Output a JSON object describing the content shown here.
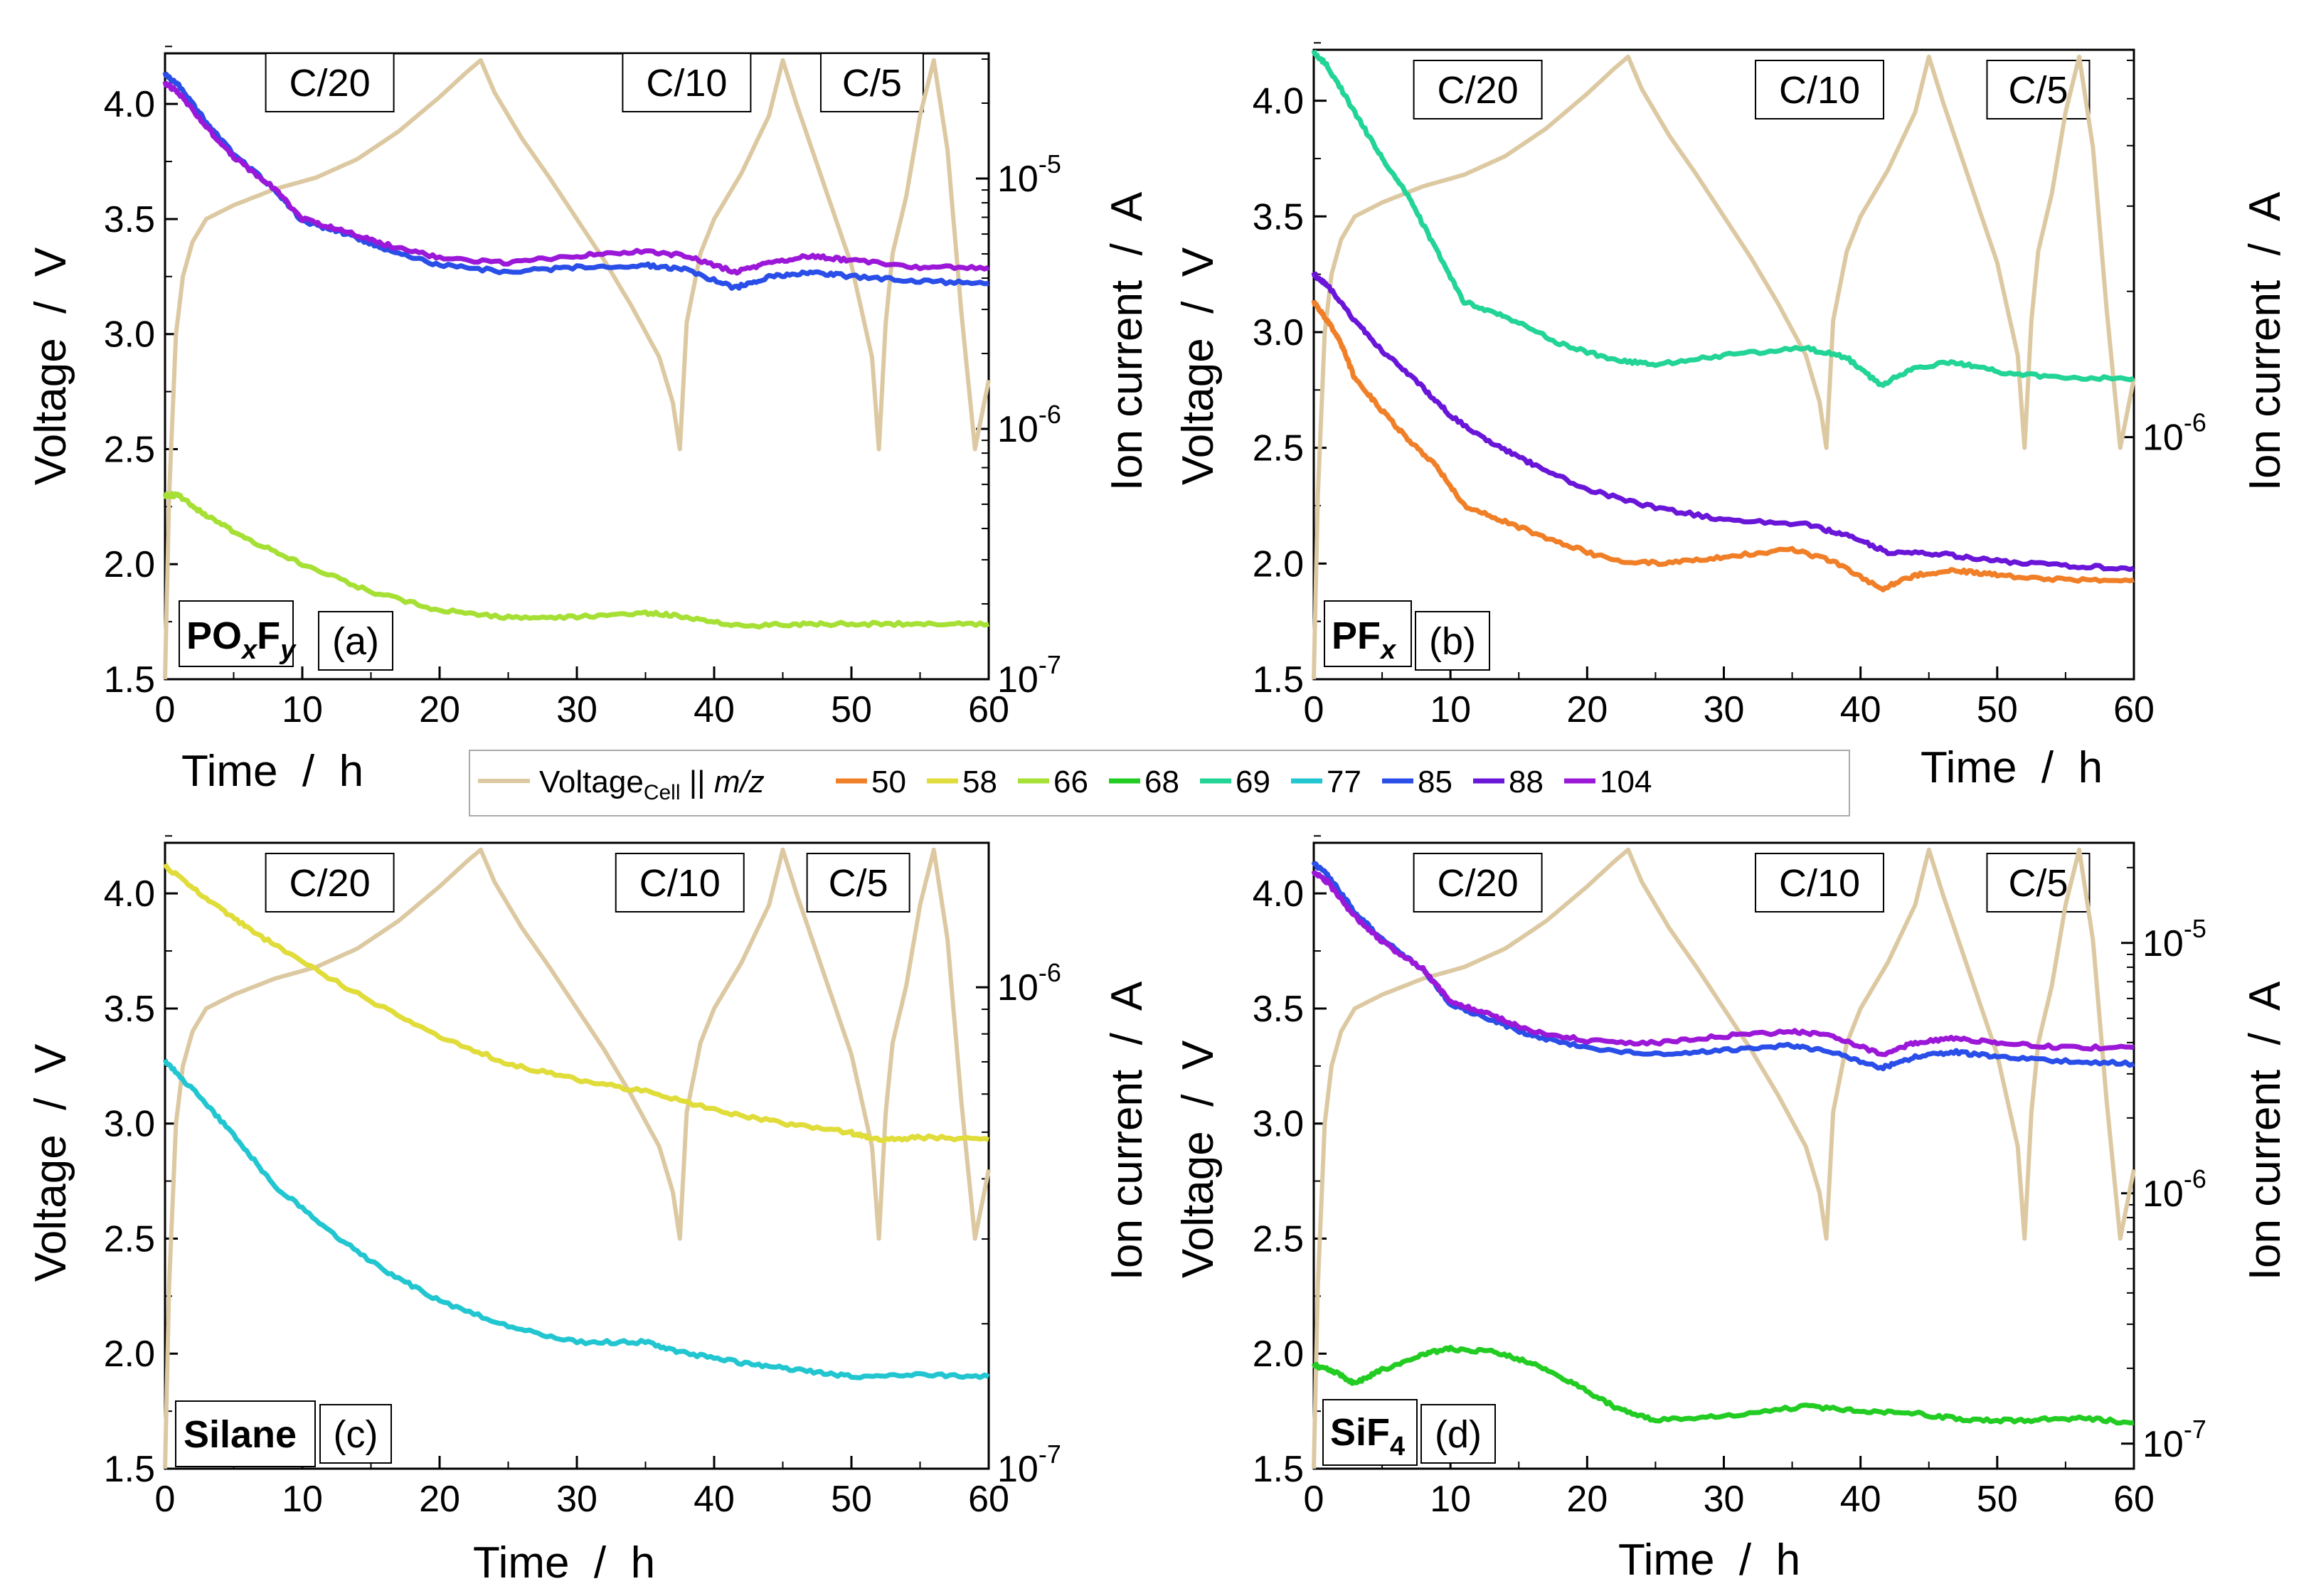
{
  "legend": {
    "voltage_label": "Voltage",
    "voltage_sub": "Cell",
    "separator": " || ",
    "mz_label": "m/z",
    "entries": [
      {
        "label": "50",
        "color": "#f07f28"
      },
      {
        "label": "58",
        "color": "#e0dc3a"
      },
      {
        "label": "66",
        "color": "#a6e035"
      },
      {
        "label": "68",
        "color": "#22cc22"
      },
      {
        "label": "69",
        "color": "#22d495"
      },
      {
        "label": "77",
        "color": "#22c6d0"
      },
      {
        "label": "85",
        "color": "#2a4ee8"
      },
      {
        "label": "88",
        "color": "#6a16d8"
      },
      {
        "label": "104",
        "color": "#9c18d8"
      }
    ]
  },
  "colors": {
    "voltage": "#dcc9a2"
  },
  "chart_data": [
    {
      "type": "line",
      "id": "a",
      "panel_label": "(a)",
      "species": {
        "base": "PO",
        "s1": "x",
        "mid": "F",
        "s2": "y"
      },
      "xlabel": "Time  /  h",
      "ylabel": "Voltage  /  V",
      "y2label": "Ion current  /  A",
      "xlim": [
        0,
        60
      ],
      "ylim": [
        1.5,
        4.22
      ],
      "xticks": [
        "0",
        "10",
        "20",
        "30",
        "40",
        "50",
        "60"
      ],
      "yticks": [
        "1.5",
        "2.0",
        "2.5",
        "3.0",
        "3.5",
        "4.0"
      ],
      "y2": {
        "log_min": -7,
        "log_max": -4.5,
        "ticks": [
          {
            "base": "10",
            "exp": "-7"
          },
          {
            "base": "10",
            "exp": "-6"
          },
          {
            "base": "10",
            "exp": "-5"
          }
        ]
      },
      "c_rates": [
        {
          "label": "C/20",
          "x": 12
        },
        {
          "label": "C/10",
          "x": 38
        },
        {
          "label": "C/5",
          "x": 51.5
        }
      ],
      "series": [
        {
          "name": "85",
          "color": "#2a4ee8",
          "x": [
            0,
            1,
            3,
            5,
            8,
            10,
            13,
            16,
            20,
            25,
            30,
            35,
            38,
            41.5,
            44,
            47,
            50,
            55,
            60
          ],
          "y": [
            4.13,
            4.08,
            3.92,
            3.78,
            3.63,
            3.49,
            3.44,
            3.37,
            3.3,
            3.27,
            3.29,
            3.3,
            3.28,
            3.2,
            3.25,
            3.27,
            3.25,
            3.23,
            3.22
          ]
        },
        {
          "name": "104",
          "color": "#9c18d8",
          "x": [
            0,
            1,
            3,
            5,
            8,
            10,
            13,
            16,
            20,
            25,
            30,
            35,
            38,
            41.5,
            44,
            47,
            50,
            55,
            60
          ],
          "y": [
            4.09,
            4.05,
            3.9,
            3.77,
            3.63,
            3.5,
            3.45,
            3.39,
            3.33,
            3.31,
            3.34,
            3.36,
            3.34,
            3.27,
            3.31,
            3.34,
            3.32,
            3.29,
            3.29
          ]
        },
        {
          "name": "66",
          "color": "#a6e035",
          "x": [
            0,
            1,
            3,
            6,
            10,
            15,
            20,
            25,
            30,
            35,
            38,
            42,
            46,
            50,
            55,
            60
          ],
          "y": [
            2.3,
            2.3,
            2.21,
            2.11,
            2.0,
            1.88,
            1.8,
            1.77,
            1.77,
            1.79,
            1.77,
            1.73,
            1.74,
            1.74,
            1.74,
            1.74
          ]
        }
      ]
    },
    {
      "type": "line",
      "id": "b",
      "panel_label": "(b)",
      "species": {
        "base": "PF",
        "s1": "x",
        "mid": "",
        "s2": ""
      },
      "xlabel": "Time  /  h",
      "ylabel": "Voltage  /  V",
      "y2label": "Ion current  /  A",
      "xlim": [
        0,
        60
      ],
      "ylim": [
        1.5,
        4.22
      ],
      "xticks": [
        "0",
        "10",
        "20",
        "30",
        "40",
        "50",
        "60"
      ],
      "yticks": [
        "1.5",
        "2.0",
        "2.5",
        "3.0",
        "3.5",
        "4.0"
      ],
      "y2": {
        "log_min": -6.5,
        "log_max": -5.2,
        "ticks": [
          {
            "base": "10",
            "exp": "-6"
          }
        ]
      },
      "c_rates": [
        {
          "label": "C/20",
          "x": 12
        },
        {
          "label": "C/10",
          "x": 37
        },
        {
          "label": "C/5",
          "x": 53
        }
      ],
      "series": [
        {
          "name": "69",
          "color": "#22d495",
          "x": [
            0,
            1,
            3,
            5,
            7,
            9,
            11,
            14,
            18,
            22,
            25,
            30,
            36,
            39,
            41.5,
            44,
            47,
            50,
            55,
            60
          ],
          "y": [
            4.21,
            4.15,
            3.95,
            3.75,
            3.58,
            3.35,
            3.13,
            3.07,
            2.95,
            2.88,
            2.86,
            2.9,
            2.93,
            2.89,
            2.77,
            2.85,
            2.87,
            2.83,
            2.8,
            2.8
          ]
        },
        {
          "name": "88",
          "color": "#6a16d8",
          "x": [
            0,
            1,
            3,
            5,
            8,
            10,
            13,
            16,
            20,
            25,
            30,
            36,
            39,
            42,
            46,
            50,
            55,
            60
          ],
          "y": [
            3.25,
            3.2,
            3.05,
            2.92,
            2.76,
            2.64,
            2.52,
            2.43,
            2.32,
            2.24,
            2.19,
            2.17,
            2.12,
            2.05,
            2.04,
            2.01,
            1.99,
            1.98
          ]
        },
        {
          "name": "50",
          "color": "#f07f28",
          "x": [
            0,
            1,
            2,
            3,
            5,
            7,
            9,
            11,
            14,
            18,
            22,
            26,
            30,
            35,
            38,
            41.5,
            44,
            47,
            50,
            55,
            60
          ],
          "y": [
            3.13,
            3.05,
            2.95,
            2.8,
            2.66,
            2.53,
            2.42,
            2.25,
            2.18,
            2.09,
            2.01,
            2.0,
            2.03,
            2.06,
            2.01,
            1.89,
            1.95,
            1.97,
            1.95,
            1.93,
            1.93
          ]
        }
      ]
    },
    {
      "type": "line",
      "id": "c",
      "panel_label": "(c)",
      "species": {
        "base": "Silane",
        "s1": "",
        "mid": "",
        "s2": ""
      },
      "xlabel": "Time  /  h",
      "ylabel": "Voltage  /  V",
      "y2label": "Ion current  /  A",
      "xlim": [
        0,
        60
      ],
      "ylim": [
        1.5,
        4.22
      ],
      "xticks": [
        "0",
        "10",
        "20",
        "30",
        "40",
        "50",
        "60"
      ],
      "yticks": [
        "1.5",
        "2.0",
        "2.5",
        "3.0",
        "3.5",
        "4.0"
      ],
      "y2": {
        "log_min": -7,
        "log_max": -5.7,
        "ticks": [
          {
            "base": "10",
            "exp": "-7"
          },
          {
            "base": "10",
            "exp": "-6"
          }
        ]
      },
      "c_rates": [
        {
          "label": "C/20",
          "x": 12
        },
        {
          "label": "C/10",
          "x": 37.5
        },
        {
          "label": "C/5",
          "x": 50.5
        }
      ],
      "series": [
        {
          "name": "58",
          "color": "#e0dc3a",
          "x": [
            0,
            3,
            6,
            10,
            15,
            20,
            25,
            30,
            35,
            40,
            45,
            50,
            52,
            55,
            60
          ],
          "y": [
            4.12,
            3.98,
            3.85,
            3.7,
            3.53,
            3.38,
            3.26,
            3.19,
            3.14,
            3.06,
            3.0,
            2.96,
            2.93,
            2.94,
            2.93
          ]
        },
        {
          "name": "77",
          "color": "#22c6d0",
          "x": [
            0,
            2,
            5,
            8,
            12,
            16,
            20,
            25,
            30,
            35,
            38,
            42,
            46,
            50,
            55,
            60
          ],
          "y": [
            3.27,
            3.15,
            2.95,
            2.73,
            2.53,
            2.36,
            2.23,
            2.12,
            2.05,
            2.05,
            2.0,
            1.96,
            1.93,
            1.9,
            1.91,
            1.9
          ]
        }
      ]
    },
    {
      "type": "line",
      "id": "d",
      "panel_label": "(d)",
      "species": {
        "base": "SiF",
        "s1": "",
        "mid": "",
        "s2": "4"
      },
      "xlabel": "Time  /  h",
      "ylabel": "Voltage  /  V",
      "y2label": "Ion current  /  A",
      "xlim": [
        0,
        60
      ],
      "ylim": [
        1.5,
        4.22
      ],
      "xticks": [
        "0",
        "10",
        "20",
        "30",
        "40",
        "50",
        "60"
      ],
      "yticks": [
        "1.5",
        "2.0",
        "2.5",
        "3.0",
        "3.5",
        "4.0"
      ],
      "y2": {
        "log_min": -7.1,
        "log_max": -4.6,
        "ticks": [
          {
            "base": "10",
            "exp": "-7"
          },
          {
            "base": "10",
            "exp": "-6"
          },
          {
            "base": "10",
            "exp": "-5"
          }
        ]
      },
      "c_rates": [
        {
          "label": "C/20",
          "x": 12
        },
        {
          "label": "C/10",
          "x": 37
        },
        {
          "label": "C/5",
          "x": 53
        }
      ],
      "series": [
        {
          "name": "85",
          "color": "#2a4ee8",
          "x": [
            0,
            1,
            3,
            5,
            8,
            10,
            13,
            16,
            20,
            25,
            30,
            35,
            38,
            41.5,
            44,
            47,
            50,
            55,
            60
          ],
          "y": [
            4.13,
            4.08,
            3.92,
            3.8,
            3.67,
            3.52,
            3.45,
            3.38,
            3.33,
            3.3,
            3.32,
            3.34,
            3.31,
            3.24,
            3.29,
            3.31,
            3.29,
            3.27,
            3.26
          ]
        },
        {
          "name": "104",
          "color": "#9c18d8",
          "x": [
            0,
            1,
            3,
            5,
            8,
            10,
            13,
            16,
            20,
            25,
            30,
            35,
            38,
            41.5,
            44,
            47,
            50,
            55,
            60
          ],
          "y": [
            4.09,
            4.05,
            3.9,
            3.79,
            3.67,
            3.53,
            3.47,
            3.4,
            3.36,
            3.35,
            3.38,
            3.4,
            3.38,
            3.3,
            3.35,
            3.37,
            3.35,
            3.33,
            3.33
          ]
        },
        {
          "name": "68",
          "color": "#22cc22",
          "x": [
            0,
            1.5,
            3,
            5,
            8,
            10,
            13,
            16,
            19,
            22,
            25,
            30,
            36,
            40,
            44,
            48,
            52,
            56,
            60
          ],
          "y": [
            1.95,
            1.92,
            1.87,
            1.93,
            2.0,
            2.02,
            2.01,
            1.96,
            1.87,
            1.77,
            1.71,
            1.73,
            1.77,
            1.75,
            1.74,
            1.71,
            1.71,
            1.72,
            1.7
          ]
        }
      ]
    }
  ]
}
